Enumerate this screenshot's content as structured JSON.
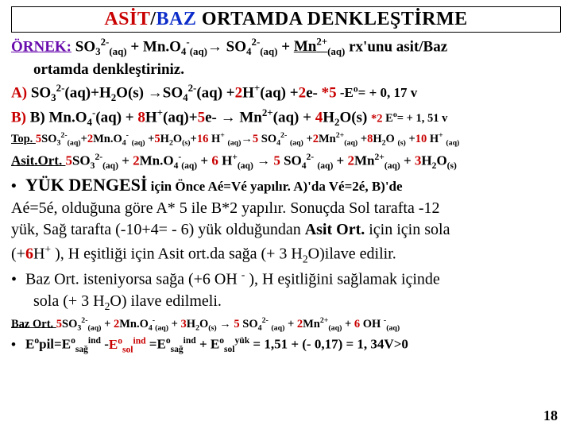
{
  "title": {
    "asit": "ASİT",
    "slash": "/",
    "baz": "BAZ",
    "rest": " ORTAMDA   DENKLEŞTİRME"
  },
  "ornek_label": "ÖRNEK:",
  "ornek_eq": "SO₃²⁻(aq) + Mn.O₄⁻(aq)→ SO₄²⁻(aq) + Mn²⁺(aq)  rx'unu asit/Baz",
  "ornek_sub": "ortamda denkleştiriniz.",
  "A_label": "A)",
  "A_lhs": "SO₃²⁻(aq)+H₂O(s) ",
  "A_arrow": "→SO₄²⁻(aq) +",
  "A_red1": "2",
  "A_mid": "H⁺(aq) +",
  "A_red2": "2",
  "A_e": "e-   ",
  "A_star": "*5",
  "A_eo": "   -Eᵒ= + 0, 17 v",
  "B_label": "B)",
  "B_dup": " B) ",
  "B_lhs": "Mn.O₄⁻(aq) + ",
  "B_8": "8",
  "B_h": "H⁺(aq)+",
  "B_5": "5",
  "B_e": "e- → Mn²⁺(aq) + ",
  "B_4": "4",
  "B_h2o": "H₂O(s) ",
  "B_star": "*2",
  "B_eo": " Eᵒ= + 1, 51 v",
  "top_label": "Top. ",
  "top_5": "5",
  "top_so3": "SO₃²⁻(aq)+",
  "top_2a": "2",
  "top_mno4": "Mn.O₄⁻ (aq) +",
  "top_5b": "5",
  "top_h2o": "H₂O(s)+",
  "top_16": "16",
  "top_h": " H⁺ (aq)→",
  "top_5c": "5",
  "top_so4": " SO₄²⁻ (aq) +",
  "top_2b": "2",
  "top_mn2": "Mn²⁺(aq) +",
  "top_8": "8",
  "top_h2ob": "H₂O (s) +",
  "top_10": "10",
  "top_hb": " H⁺ (aq)",
  "asitort_label": "Asit.Ort.  ",
  "asitort_5": " 5",
  "asitort_so3": "SO₃²⁻(aq) + ",
  "asitort_2": "2",
  "asitort_mno4": "Mn.O₄⁻(aq) + ",
  "asitort_6": "6",
  "asitort_h": " H⁺(aq) → ",
  "asitort_5b": "5",
  "asitort_so4": " SO₄²⁻ (aq) + ",
  "asitort_2b": "2",
  "asitort_mn2": "Mn²⁺(aq) + ",
  "asitort_3": "3",
  "asitort_h2o": "H₂O(s)",
  "yuk_label": "YÜK DENGESİ",
  "yuk_rest": " için Önce Aé=Vé yapılır. A)'da Vé=2é, B)'de",
  "para1": "Aé=5é, olduğuna göre A* 5 ile B*2 yapılır. Sonuçda Sol tarafta -12",
  "para2a": "yük, Sağ tarafta (-10+4= - 6) yük olduğundan ",
  "para2b": "Asit Ort.",
  "para2c": " için için sola",
  "para3a": "(+",
  "para3b": "6",
  "para3c": "H⁺ ), H  eşitliği için Asit ort.da sağa (+ 3 H₂O)ilave edilir.",
  "para4a": "Baz Ort. isteniyorsa sağa (+6 OH ⁻ ), H  eşitliğini sağlamak içinde",
  "para5": "sola (+ 3 H₂O)  ilave edilmeli.",
  "bazort_label": "Baz Ort.  ",
  "baz_5": "5",
  "baz_so3": "SO₃²⁻(aq) + ",
  "baz_2": " 2",
  "baz_mno4": "Mn.O₄⁻(aq) + ",
  "baz_3": "3",
  "baz_h2o": "H₂O(s) → ",
  "baz_5b": "5",
  "baz_so4": " SO₄²⁻ (aq) + ",
  "baz_2b": "2",
  "baz_mn2": "Mn²⁺(aq) + ",
  "baz_6": " 6",
  "baz_oh": " OH ⁻(aq)",
  "eo_line": "Eᵒpil=Eᵒ_sağ^ind -Eᵒ_sol^ind =Eᵒ_sağ^ind + Eᵒ_sol^yük = 1,51 + (- 0,17) =  1, 34V>0",
  "page": "18"
}
